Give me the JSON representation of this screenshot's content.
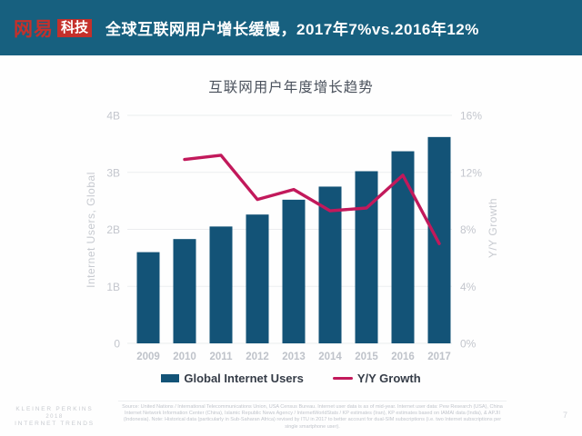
{
  "page": {
    "page_number": "7"
  },
  "header": {
    "bg_color": "#17607F",
    "brand_red": "#C5302B",
    "logo_text": "网易",
    "logo_badge": "科技",
    "title": "全球互联网用户增长缓慢，2017年7%vs.2016年12%"
  },
  "chart_data": {
    "type": "combo-bar-line",
    "title": "互联网用户年度增长趋势",
    "categories": [
      "2009",
      "2010",
      "2011",
      "2012",
      "2013",
      "2014",
      "2015",
      "2016",
      "2017"
    ],
    "series": [
      {
        "name": "Global Internet Users",
        "type": "bar",
        "axis": "left",
        "unit": "billions",
        "color": "#135377",
        "values": [
          1.6,
          1.83,
          2.05,
          2.26,
          2.52,
          2.75,
          3.02,
          3.37,
          3.62
        ]
      },
      {
        "name": "Y/Y Growth",
        "type": "line",
        "axis": "right",
        "unit": "percent",
        "color": "#C2195B",
        "values": [
          null,
          12.9,
          13.2,
          10.1,
          10.8,
          9.3,
          9.5,
          11.8,
          7.0
        ]
      }
    ],
    "left_axis": {
      "label": "Internet Users, Global",
      "range": [
        0,
        4
      ],
      "ticks": [
        "4B",
        "3B",
        "2B",
        "1B",
        "0"
      ]
    },
    "right_axis": {
      "label": "Y/Y Growth",
      "range": [
        0,
        16
      ],
      "ticks": [
        "16%",
        "12%",
        "8%",
        "4%",
        "0%"
      ]
    },
    "grid": true,
    "legend_position": "bottom",
    "grid_color": "#ebedef"
  },
  "footer": {
    "source_text": "Source: United Nations / International Telecommunications Union, USA Census Bureau. Internet user data is as of mid-year. Internet user data: Pew Research (USA), China Internet Network Information Center (China), Islamic Republic News Agency / InternetWorldStats / KP estimates (Iran), KP estimates based on IAMAI data (India), & APJII (Indonesia).  Note: Historical data (particularly in Sub-Saharan Africa) revised by ITU in 2017 to better account for dual-SIM subscriptions (i.e. two Internet subscriptions per single smartphone user).",
    "brand_lines": [
      "KLEINER PERKINS",
      "2018",
      "INTERNET TRENDS"
    ]
  }
}
